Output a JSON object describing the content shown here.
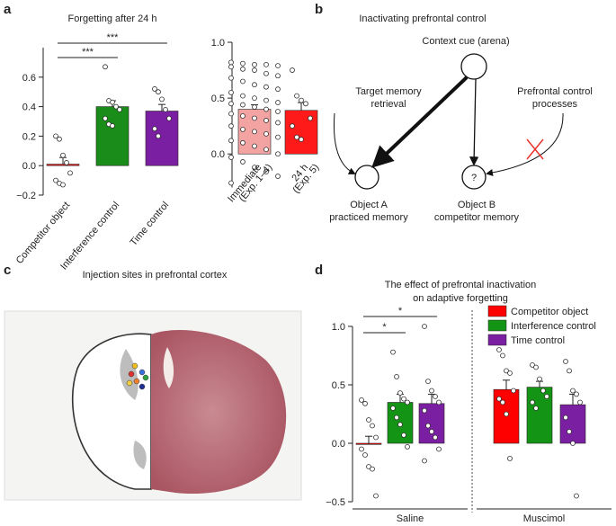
{
  "panel_labels": [
    "a",
    "b",
    "c",
    "d"
  ],
  "chart_data": [
    {
      "type": "bar",
      "title": "Forgetting after 24 h",
      "categories": [
        "Competitor object",
        "Interference control",
        "Time control"
      ],
      "values": [
        0.01,
        0.4,
        0.37
      ],
      "errors": [
        0.045,
        0.04,
        0.045
      ],
      "colors": [
        "#ee1c1c",
        "#1a8c1a",
        "#7b1fa2"
      ],
      "points": [
        [
          0.2,
          0.18,
          0.07,
          0.02,
          -0.05,
          -0.1,
          -0.12,
          -0.13
        ],
        [
          0.67,
          0.44,
          0.43,
          0.4,
          0.38,
          0.32,
          0.28,
          0.27
        ],
        [
          0.52,
          0.5,
          0.45,
          0.38,
          0.32,
          0.25,
          0.2
        ]
      ],
      "ylim": [
        -0.2,
        0.8
      ],
      "yticks": [
        {
          "value": -0.2,
          "label": "−0.2"
        },
        {
          "value": 0,
          "label": "0.0"
        },
        0.2,
        0.4,
        0.6
      ],
      "annotations": [
        {
          "text": "***",
          "from": 0,
          "to": 2
        },
        {
          "text": "***",
          "from": 0,
          "to": 1
        }
      ]
    },
    {
      "type": "bar",
      "categories": [
        "Immediate",
        "24 h"
      ],
      "category_notes": [
        "(Exp. 1–4)",
        "(Exp. 5)"
      ],
      "values": [
        0.4,
        0.39
      ],
      "errors": [
        0.04,
        0.07
      ],
      "colors": [
        "#f4a3a3",
        "#ff1a1a"
      ],
      "points": [
        [
          0.82,
          0.81,
          0.8,
          0.8,
          0.79,
          0.78,
          0.76,
          0.75,
          0.72,
          0.7,
          0.68,
          0.65,
          0.62,
          0.6,
          0.58,
          0.55,
          0.52,
          0.5,
          0.48,
          0.46,
          0.45,
          0.44,
          0.42,
          0.4,
          0.38,
          0.36,
          0.34,
          0.32,
          0.3,
          0.28,
          0.25,
          0.22,
          0.2,
          0.18,
          0.15,
          0.12,
          0.1,
          0.07,
          0.04,
          0.0,
          -0.03,
          -0.07,
          -0.12,
          -0.16,
          -0.2,
          -0.26
        ],
        [
          0.75,
          0.52,
          0.48,
          0.45,
          0.32,
          0.25,
          0.15,
          0.13
        ]
      ],
      "ylim": [
        -0.3,
        1.0
      ],
      "yticks": [
        {
          "value": 0,
          "label": "0.0"
        },
        0.5,
        {
          "value": 1,
          "label": "1.0"
        }
      ]
    },
    {
      "type": "grouped_bar",
      "title": [
        "The effect of prefrontal inactivation",
        "on adaptive forgetting"
      ],
      "groups": [
        "Saline",
        "Muscimol"
      ],
      "series": [
        {
          "name": "Competitor object",
          "color": "#ff0000",
          "values": [
            -0.01,
            0.46
          ],
          "errors": [
            0.07,
            0.08
          ],
          "points": [
            [
              0.37,
              0.34,
              0.2,
              0.15,
              0.05,
              -0.05,
              -0.1,
              -0.2,
              -0.22,
              -0.45
            ],
            [
              0.8,
              0.75,
              0.62,
              0.6,
              0.45,
              0.38,
              0.35,
              0.25,
              -0.13
            ]
          ]
        },
        {
          "name": "Interference control",
          "color": "#149414",
          "values": [
            0.35,
            0.48
          ],
          "errors": [
            0.07,
            0.05
          ],
          "points": [
            [
              0.78,
              0.57,
              0.43,
              0.38,
              0.35,
              0.3,
              0.22,
              0.16,
              0.07,
              -0.03
            ],
            [
              0.67,
              0.65,
              0.55,
              0.45,
              0.4,
              0.35,
              0.3
            ]
          ]
        },
        {
          "name": "Time control",
          "color": "#7b1fa2",
          "values": [
            0.34,
            0.33
          ],
          "errors": [
            0.08,
            0.09
          ],
          "points": [
            [
              1.0,
              0.53,
              0.45,
              0.4,
              0.35,
              0.28,
              0.15,
              0.1,
              0.05,
              -0.05,
              -0.15
            ],
            [
              0.7,
              0.62,
              0.45,
              0.42,
              0.35,
              0.22,
              0.1,
              0.0,
              -0.45
            ]
          ]
        }
      ],
      "ylim": [
        -0.5,
        1.0
      ],
      "yticks": [
        {
          "value": -0.5,
          "label": "−0.5"
        },
        {
          "value": 0,
          "label": "0.0"
        },
        0.5,
        {
          "value": 1,
          "label": "1.0"
        }
      ],
      "legend": "upper right",
      "annotations": [
        {
          "text": "*",
          "from": 0,
          "to": 2
        },
        {
          "text": "*",
          "from": 0,
          "to": 1
        }
      ]
    }
  ],
  "diagram": {
    "title": "Inactivating prefrontal control",
    "context": "Context cue (arena)",
    "object_a": [
      "Object A",
      "practiced memory"
    ],
    "object_b": [
      "Object B",
      "competitor memory"
    ],
    "object_b_symbol": "?",
    "target": [
      "Target memory",
      "retrieval"
    ],
    "control": [
      "Prefrontal control",
      "processes"
    ]
  },
  "image_panel": {
    "title": "Injection sites in prefrontal cortex"
  }
}
